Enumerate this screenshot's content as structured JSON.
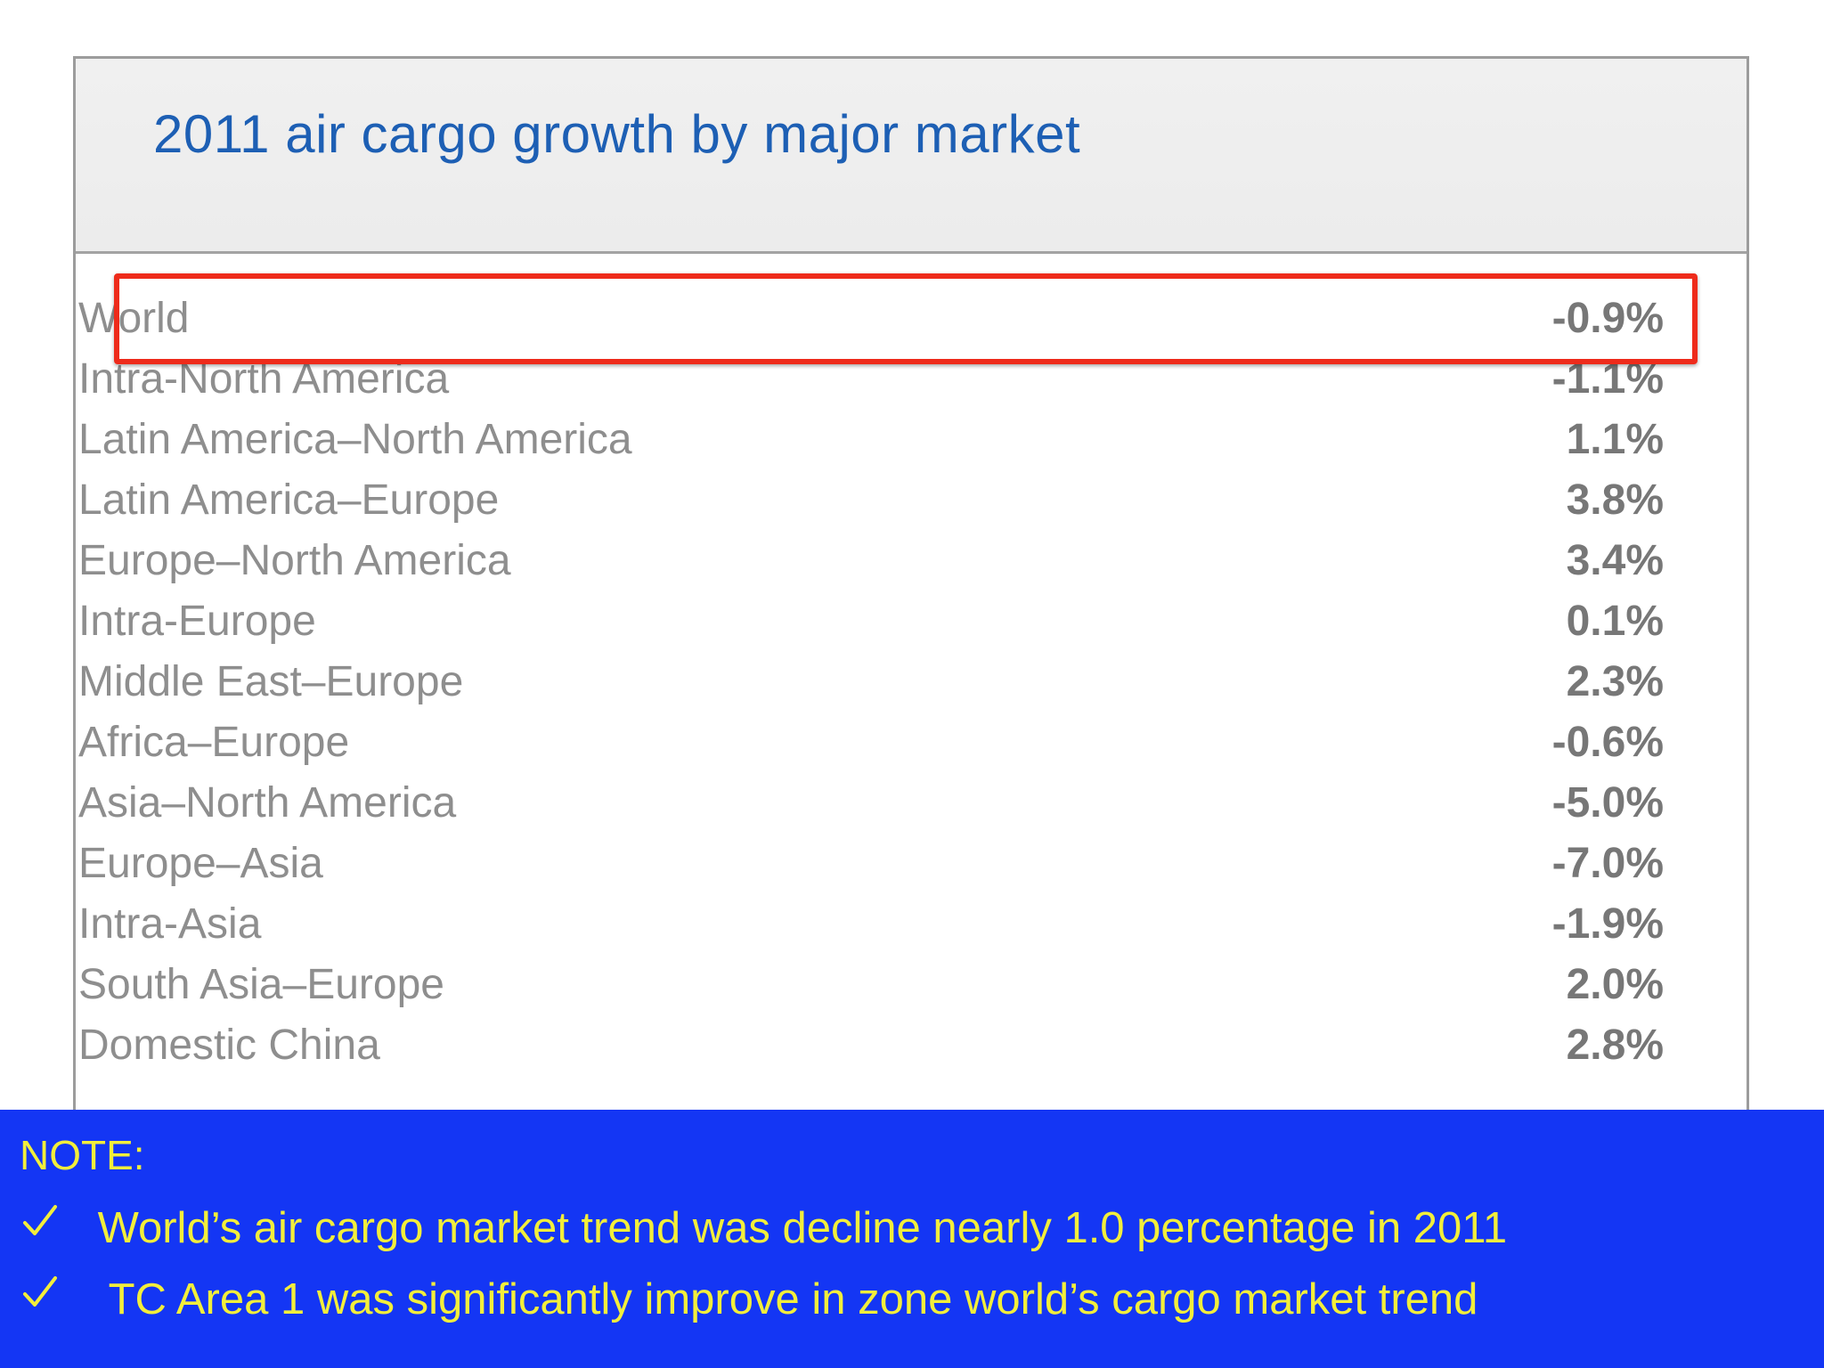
{
  "table": {
    "title": "2011 air cargo growth by major market",
    "rows": [
      {
        "market": "World",
        "growth": "-0.9%"
      },
      {
        "market": "Intra-North America",
        "growth": "-1.1%"
      },
      {
        "market": "Latin America–North America",
        "growth": "1.1%"
      },
      {
        "market": "Latin America–Europe",
        "growth": "3.8%"
      },
      {
        "market": "Europe–North America",
        "growth": "3.4%"
      },
      {
        "market": "Intra-Europe",
        "growth": "0.1%"
      },
      {
        "market": "Middle East–Europe",
        "growth": "2.3%"
      },
      {
        "market": "Africa–Europe",
        "growth": "-0.6%"
      },
      {
        "market": "Asia–North America",
        "growth": "-5.0%"
      },
      {
        "market": "Europe–Asia",
        "growth": "-7.0%"
      },
      {
        "market": "Intra-Asia",
        "growth": "-1.9%"
      },
      {
        "market": "South Asia–Europe",
        "growth": "2.0%"
      },
      {
        "market": "Domestic China",
        "growth": "2.8%"
      }
    ],
    "highlighted_row": "World"
  },
  "note": {
    "heading": "NOTE:",
    "items": [
      {
        "icon": "checkmark-icon",
        "text": "World’s air cargo market trend was decline nearly 1.0 percentage in 2011"
      },
      {
        "icon": "checkmark-icon",
        "text": "TC Area 1 was significantly improve in  zone world’s cargo market trend"
      }
    ]
  },
  "colors": {
    "title": "#1d5fb4",
    "highlight_border": "#ee2b1b",
    "note_background": "#1436f4",
    "note_text": "#f2ee3b"
  }
}
